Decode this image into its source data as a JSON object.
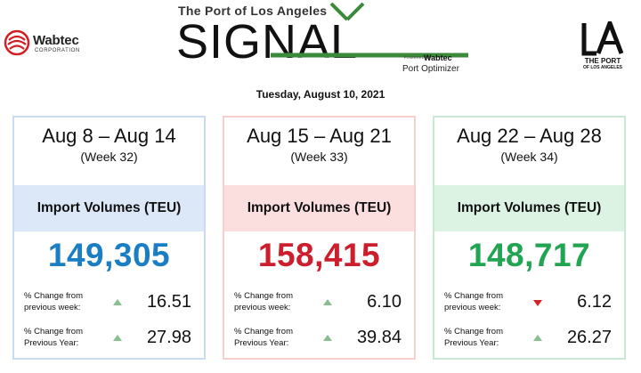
{
  "header": {
    "wabtec_logo": {
      "name": "Wabtec",
      "sub": "CORPORATION"
    },
    "signal": {
      "tagline": "The Port of Los Angeles",
      "title": "SIGNAL",
      "powered_by": "POWERED BY",
      "brand": "Wabtec",
      "product": "Port Optimizer"
    },
    "la_logo": {
      "line1": "THE PORT",
      "line2": "OF LOS ANGELES"
    },
    "date": "Tuesday, August 10, 2021"
  },
  "accent_colors": {
    "week32": "#1a7ec4",
    "week33": "#cc1e2c",
    "week34": "#22a552",
    "logo_green": "#3a8a3a",
    "up_arrow": "#85c08e",
    "down_arrow": "#d42323"
  },
  "cards": [
    {
      "range": "Aug 8 – Aug 14",
      "week": "(Week 32)",
      "metric_label": "Import Volumes (TEU)",
      "total": "149,305",
      "stats": [
        {
          "label": "% Change from previous week:",
          "direction": "up",
          "value": "16.51"
        },
        {
          "label": "% Change from Previous Year:",
          "direction": "up",
          "value": "27.98"
        }
      ]
    },
    {
      "range": "Aug 15 – Aug 21",
      "week": "(Week 33)",
      "metric_label": "Import Volumes (TEU)",
      "total": "158,415",
      "stats": [
        {
          "label": "% Change from previous week:",
          "direction": "up",
          "value": "6.10"
        },
        {
          "label": "% Change from Previous Year:",
          "direction": "up",
          "value": "39.84"
        }
      ]
    },
    {
      "range": "Aug 22 – Aug 28",
      "week": "(Week 34)",
      "metric_label": "Import Volumes (TEU)",
      "total": "148,717",
      "stats": [
        {
          "label": "% Change from previous week:",
          "direction": "down",
          "value": "6.12"
        },
        {
          "label": "% Change from Previous Year:",
          "direction": "up",
          "value": "26.27"
        }
      ]
    }
  ]
}
